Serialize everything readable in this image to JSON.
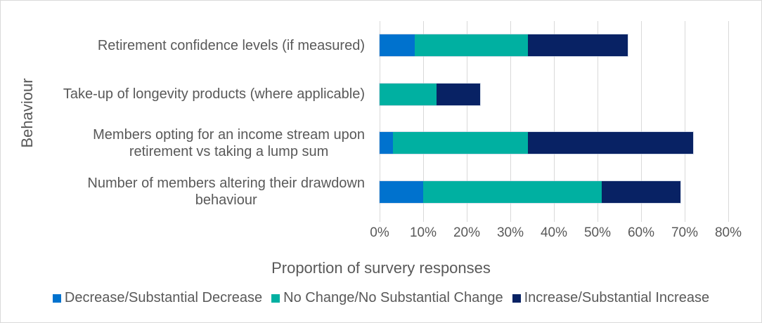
{
  "figure": {
    "background": "#ffffff",
    "border_color": "#d9d9d9",
    "text_color": "#595959",
    "gridline_color": "#d9d9d9"
  },
  "chart_data": {
    "type": "bar",
    "orientation": "horizontal",
    "stacked": true,
    "title": "",
    "xlabel": "Proportion of survery responses",
    "ylabel": "Behaviour",
    "xlim": [
      0,
      80
    ],
    "x_ticks": [
      0,
      10,
      20,
      30,
      40,
      50,
      60,
      70,
      80
    ],
    "x_tick_labels": [
      "0%",
      "10%",
      "20%",
      "30%",
      "40%",
      "50%",
      "60%",
      "70%",
      "80%"
    ],
    "grid": true,
    "legend_position": "bottom",
    "categories": [
      "Retirement confidence levels (if measured)",
      "Take-up of longevity products (where applicable)",
      "Members opting for an income stream upon\nretirement vs taking a lump sum",
      "Number of members altering their drawdown\nbehaviour"
    ],
    "series": [
      {
        "key": "decrease",
        "name": "Decrease/Substantial Decrease",
        "color": "#0072CE",
        "values": [
          8,
          0,
          3,
          10
        ]
      },
      {
        "key": "no-change",
        "name": "No Change/No Substantial Change",
        "color": "#00B0A1",
        "values": [
          26,
          13,
          31,
          41
        ]
      },
      {
        "key": "increase",
        "name": "Increase/Substantial Increase",
        "color": "#082264",
        "values": [
          23,
          10,
          38,
          18
        ]
      }
    ]
  }
}
